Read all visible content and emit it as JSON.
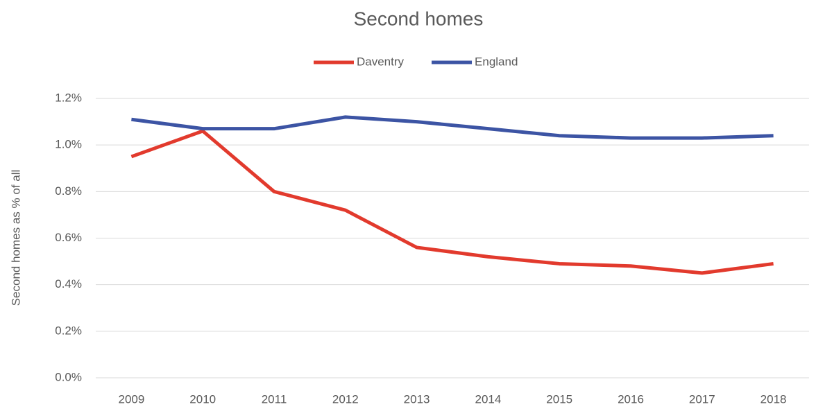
{
  "chart_data": {
    "type": "line",
    "title": "Second homes",
    "y_label": "Second homes as % of all",
    "categories": [
      "2009",
      "2010",
      "2011",
      "2012",
      "2013",
      "2014",
      "2015",
      "2016",
      "2017",
      "2018"
    ],
    "series": [
      {
        "name": "Daventry",
        "color": "#e23a2d",
        "values": [
          0.95,
          1.06,
          0.8,
          0.72,
          0.56,
          0.52,
          0.49,
          0.48,
          0.45,
          0.49
        ]
      },
      {
        "name": "England",
        "color": "#3c54a4",
        "values": [
          1.11,
          1.07,
          1.07,
          1.12,
          1.1,
          1.07,
          1.04,
          1.03,
          1.03,
          1.04
        ]
      }
    ],
    "ylim": [
      0,
      1.2
    ],
    "yticks": [
      {
        "value": 0,
        "label": "0.0%"
      },
      {
        "value": 0.2,
        "label": "0.2%"
      },
      {
        "value": 0.4,
        "label": "0.4%"
      },
      {
        "value": 0.6,
        "label": "0.6%"
      },
      {
        "value": 0.8,
        "label": "0.8%"
      },
      {
        "value": 1.0,
        "label": "1.0%"
      },
      {
        "value": 1.2,
        "label": "1.2%"
      }
    ],
    "grid": true,
    "legend": "top"
  }
}
